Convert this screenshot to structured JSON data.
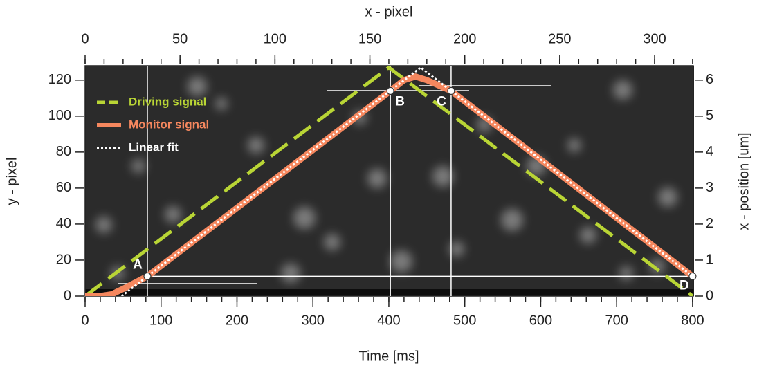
{
  "chart_data": {
    "type": "line",
    "xlabel": "Time [ms]",
    "x2label": "x - pixel",
    "ylabel": "y - pixel",
    "y2label": "x - position [um]",
    "xlim": [
      0,
      801
    ],
    "xticks": [
      0,
      100,
      200,
      300,
      400,
      500,
      600,
      700,
      800
    ],
    "x2lim": [
      0,
      320.4
    ],
    "x2ticks": [
      0,
      50,
      100,
      150,
      200,
      250,
      300
    ],
    "ylim": [
      0,
      128
    ],
    "yticks": [
      0,
      20,
      40,
      60,
      80,
      100,
      120
    ],
    "y2lim": [
      0,
      6.4
    ],
    "y2ticks": [
      0,
      1,
      2,
      3,
      4,
      5,
      6
    ],
    "minor_ticks": {
      "x": 20,
      "x2": 10
    },
    "legend": "upper left",
    "series": [
      {
        "name": "Driving signal",
        "color": "#b9d535",
        "style": "dashed",
        "x": [
          0,
          400,
          800
        ],
        "values": [
          0,
          127,
          0
        ]
      },
      {
        "name": "Monitor signal",
        "color": "#f5875e",
        "style": "solid",
        "x": [
          0,
          20,
          35,
          50,
          82,
          402,
          420,
          435,
          450,
          482,
          800
        ],
        "values": [
          0,
          0,
          1,
          4,
          11,
          114,
          120,
          122,
          120,
          114,
          11
        ]
      },
      {
        "name": "Linear fit",
        "color": "#ffffff",
        "style": "dotted",
        "x": [
          48,
          442,
          800
        ],
        "values": [
          0,
          127,
          11
        ]
      }
    ],
    "markers": [
      {
        "label": "A",
        "x": 82,
        "y": 11
      },
      {
        "label": "B",
        "x": 402,
        "y": 114
      },
      {
        "label": "C",
        "x": 482,
        "y": 114
      },
      {
        "label": "D",
        "x": 800,
        "y": 11
      }
    ]
  }
}
